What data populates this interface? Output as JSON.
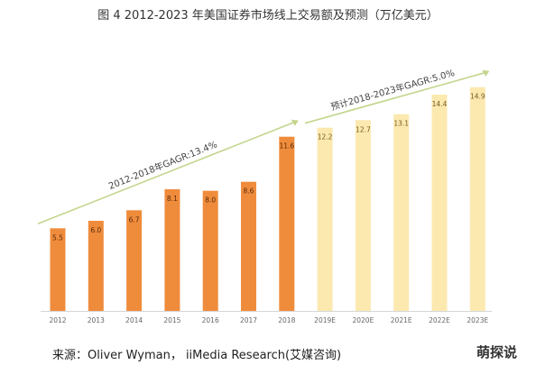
{
  "chart_data": {
    "type": "bar",
    "title": "图 4   2012-2023 年美国证券市场线上交易额及预测（万亿美元）",
    "xlabel": "",
    "ylabel": "",
    "ylim": [
      0,
      16.5
    ],
    "grid": false,
    "categories": [
      "2012",
      "2013",
      "2014",
      "2015",
      "2016",
      "2017",
      "2018",
      "2019E",
      "2020E",
      "2021E",
      "2022E",
      "2023E"
    ],
    "values": [
      5.5,
      6.0,
      6.7,
      8.1,
      8.0,
      8.6,
      11.6,
      12.2,
      12.7,
      13.1,
      14.4,
      14.9
    ],
    "value_labels": [
      "5.5",
      "6.0",
      "6.7",
      "8.1",
      "8.0",
      "8.6",
      "11.6",
      "12.2",
      "12.7",
      "13.1",
      "14.4",
      "14.9"
    ],
    "series_kind": [
      "actual",
      "actual",
      "actual",
      "actual",
      "actual",
      "actual",
      "actual",
      "forecast",
      "forecast",
      "forecast",
      "forecast",
      "forecast"
    ],
    "colors": {
      "actual": "#ef8c3c",
      "forecast": "#fbe9b0",
      "actual_label": "#5a2a08",
      "forecast_label": "#7a5a1c",
      "trend_line": "#c3d58c"
    },
    "annotations": [
      {
        "text": "2012-2018年GAGR:13.4%",
        "from_index": 0,
        "to_index": 6
      },
      {
        "text": "预计2018-2023年GAGR:5.0%",
        "from_index": 7,
        "to_index": 11
      }
    ],
    "source": "来源：Oliver Wyman，  iiMedia Research(艾媒咨询)",
    "watermark": "萌探说"
  }
}
